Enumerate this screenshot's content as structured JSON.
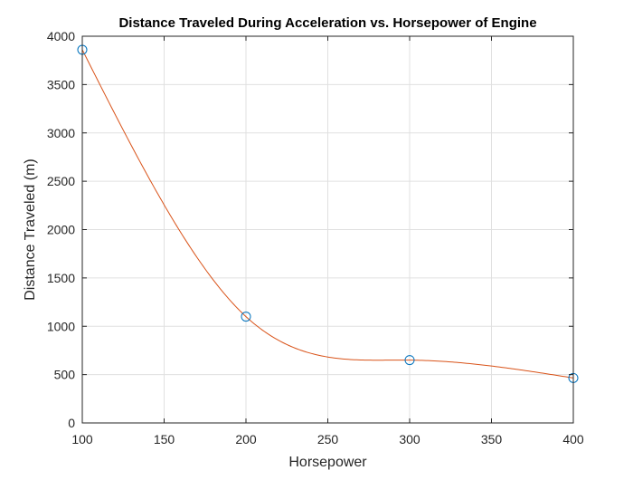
{
  "chart_data": {
    "type": "line",
    "title": "Distance Traveled During Acceleration vs. Horsepower of Engine",
    "xlabel": "Horsepower",
    "ylabel": "Distance Traveled (m)",
    "xlim": [
      100,
      400
    ],
    "ylim": [
      0,
      4000
    ],
    "x_ticks": [
      100,
      150,
      200,
      250,
      300,
      350,
      400
    ],
    "y_ticks": [
      0,
      500,
      1000,
      1500,
      2000,
      2500,
      3000,
      3500,
      4000
    ],
    "grid": true,
    "legend": "none",
    "series": [
      {
        "kind": "markers",
        "marker": "circle",
        "color": "#0072BD",
        "x": [
          100,
          200,
          300,
          400
        ],
        "y": [
          3860,
          1100,
          650,
          465
        ]
      },
      {
        "kind": "line",
        "interpolation": "spline",
        "color": "#D95319",
        "x": [
          100,
          200,
          300,
          400
        ],
        "y": [
          3860,
          1100,
          650,
          465
        ]
      }
    ]
  }
}
